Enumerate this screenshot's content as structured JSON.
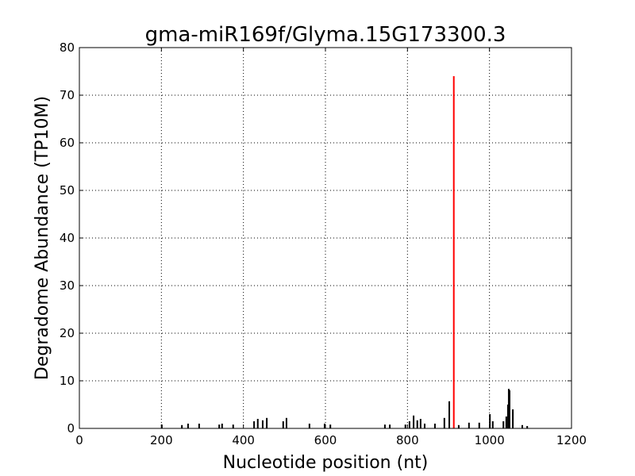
{
  "chart_data": {
    "type": "stem",
    "title": "gma-miR169f/Glyma.15G173300.3",
    "xlabel": "Nucleotide position (nt)",
    "ylabel": "Degradome Abundance (TP10M)",
    "xlim": [
      0,
      1200
    ],
    "xticks": [
      0,
      200,
      400,
      600,
      800,
      1000,
      1200
    ],
    "ylim": [
      0,
      80
    ],
    "yticks": [
      0,
      10,
      20,
      30,
      40,
      50,
      60,
      70,
      80
    ],
    "grid": true,
    "series": [
      {
        "color": "#000000",
        "x": [
          201,
          250,
          265,
          292,
          341,
          348,
          375,
          426,
          435,
          447,
          457,
          497,
          505,
          561,
          598,
          612,
          745,
          757,
          795,
          805,
          815,
          824,
          832,
          842,
          867,
          890,
          902,
          925,
          950,
          975,
          1001,
          1008,
          1034,
          1041,
          1045,
          1047,
          1049,
          1057,
          1080,
          1092
        ],
        "values": [
          0.8,
          0.7,
          1,
          1,
          0.8,
          1,
          0.8,
          1.5,
          2,
          1.7,
          2.2,
          1.5,
          2.2,
          1,
          1,
          0.8,
          0.8,
          0.8,
          0.8,
          1.5,
          2.7,
          1.7,
          2,
          1,
          1,
          2.2,
          5.7,
          0.7,
          1.2,
          1.2,
          3,
          1.5,
          1.5,
          2.5,
          5,
          8.3,
          8,
          4,
          0.7,
          0.5
        ]
      },
      {
        "color": "#ff0000",
        "x": [
          913
        ],
        "values": [
          74
        ]
      }
    ]
  }
}
